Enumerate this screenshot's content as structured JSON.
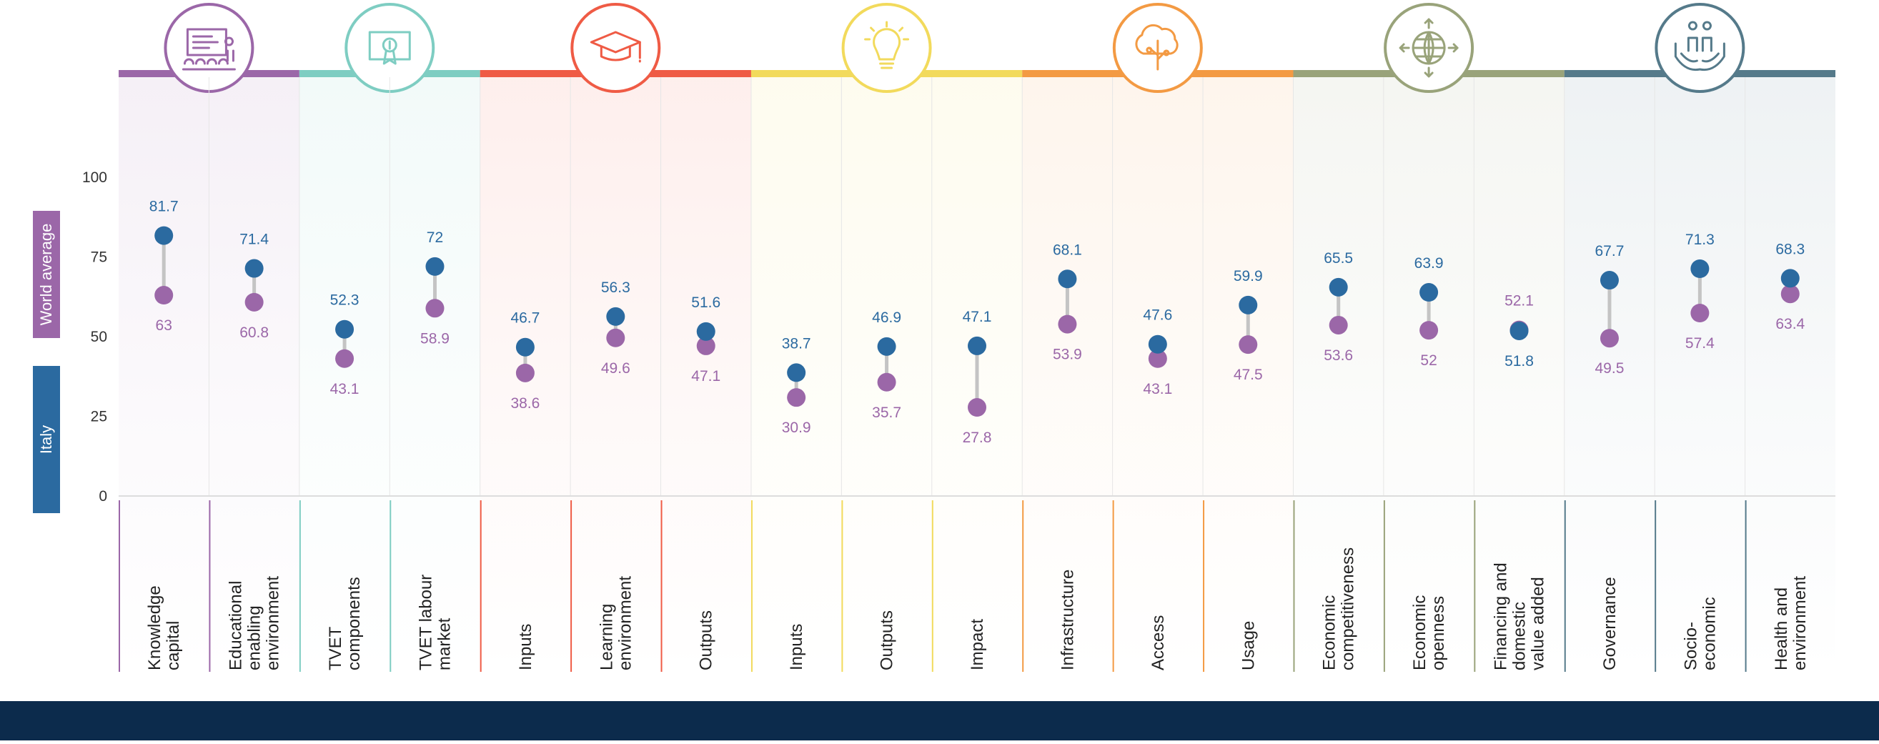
{
  "legend": {
    "world": "World average",
    "italy": "Italy"
  },
  "colors": {
    "italy": "#2b6aa0",
    "world": "#9b67a8",
    "footer": "#0c2b4c"
  },
  "groups": [
    {
      "color": "#9b67a8",
      "icon": "presentation-board-icon",
      "count": 2
    },
    {
      "color": "#7ecdc2",
      "icon": "certificate-icon",
      "count": 2
    },
    {
      "color": "#ef5b45",
      "icon": "graduation-cap-icon",
      "count": 3
    },
    {
      "color": "#f2da5c",
      "icon": "lightbulb-icon",
      "count": 3
    },
    {
      "color": "#f39a43",
      "icon": "tree-circuit-icon",
      "count": 3
    },
    {
      "color": "#99a37a",
      "icon": "globe-arrows-icon",
      "count": 3
    },
    {
      "color": "#557a8a",
      "icon": "hands-people-icon",
      "count": 3
    }
  ],
  "chart_data": {
    "type": "dumbbell",
    "ylim": [
      0,
      100
    ],
    "yticks": [
      "0",
      "25",
      "50",
      "75",
      "100"
    ],
    "categories": [
      "Knowledge\ncapital",
      "Educational\nenabling\nenvironment",
      "TVET\ncomponents",
      "TVET labour\nmarket",
      "Inputs",
      "Learning\nenvironment",
      "Outputs",
      "Inputs",
      "Outputs",
      "Impact",
      "Infrastructure",
      "Access",
      "Usage",
      "Economic\ncompetitiveness",
      "Economic\nopenness",
      "Financing and\ndomestic\nvalue added",
      "Governance",
      "Socio-\neconomic",
      "Health and\nenvironment"
    ],
    "series": [
      {
        "name": "Italy",
        "values": [
          81.7,
          71.4,
          52.3,
          72,
          46.7,
          56.3,
          51.6,
          38.7,
          46.9,
          47.1,
          68.1,
          47.6,
          59.9,
          65.5,
          63.9,
          51.8,
          67.7,
          71.3,
          68.3
        ],
        "labels": [
          "81.7",
          "71.4",
          "52.3",
          "72",
          "46.7",
          "56.3",
          "51.6",
          "38.7",
          "46.9",
          "47.1",
          "68.1",
          "47.6",
          "59.9",
          "65.5",
          "63.9",
          "51.8",
          "67.7",
          "71.3",
          "68.3"
        ]
      },
      {
        "name": "World average",
        "values": [
          63,
          60.8,
          43.1,
          58.9,
          38.6,
          49.6,
          47.1,
          30.9,
          35.7,
          27.8,
          53.9,
          43.1,
          47.5,
          53.6,
          52,
          52.1,
          49.5,
          57.4,
          63.4
        ],
        "labels": [
          "63",
          "60.8",
          "43.1",
          "58.9",
          "38.6",
          "49.6",
          "47.1",
          "30.9",
          "35.7",
          "27.8",
          "53.9",
          "43.1",
          "47.5",
          "53.6",
          "52",
          "52.1",
          "49.5",
          "57.4",
          "63.4"
        ]
      }
    ]
  }
}
